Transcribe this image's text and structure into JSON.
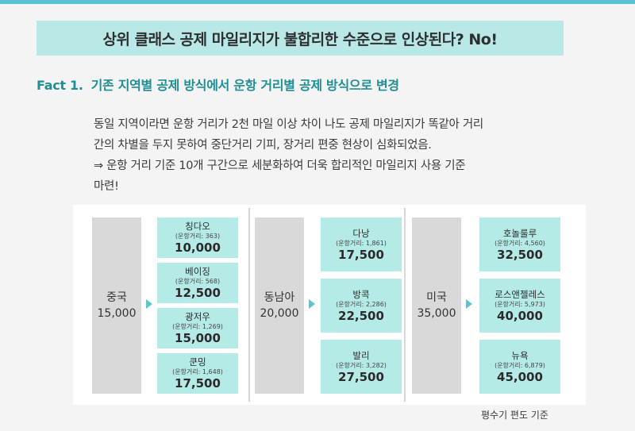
{
  "banner": "상위 클래스 공제 마일리지가 불합리한 수준으로 인상된다? No!",
  "fact": {
    "label": "Fact 1.",
    "title": "기존 지역별 공제 방식에서 운항 거리별 공제 방식으로 변경"
  },
  "body": {
    "line1": "동일 지역이라면 운항 거리가 2천 마일 이상 차이 나도 공제 마일리지가 똑같아 거리",
    "line2": "간의 차별을 두지 못하여 중단거리 기피, 장거리 편중 현상이 심화되었음.",
    "line3": "⇒ 운항 거리 기준 10개 구간으로 세분화하여 더욱 합리적인 마일리지 사용 기준",
    "line4": "마련!"
  },
  "groups": [
    {
      "region": "중국",
      "old_value": "15,000",
      "destinations": [
        {
          "name": "칭다오",
          "distance": "(운항거리: 363)",
          "value": "10,000"
        },
        {
          "name": "베이징",
          "distance": "(운항거리: 568)",
          "value": "12,500"
        },
        {
          "name": "광저우",
          "distance": "(운항거리: 1,269)",
          "value": "15,000"
        },
        {
          "name": "쿤밍",
          "distance": "(운항거리: 1,648)",
          "value": "17,500"
        }
      ]
    },
    {
      "region": "동남아",
      "old_value": "20,000",
      "destinations": [
        {
          "name": "다낭",
          "distance": "(운항거리: 1,861)",
          "value": "17,500"
        },
        {
          "name": "방콕",
          "distance": "(운항거리: 2,286)",
          "value": "22,500"
        },
        {
          "name": "발리",
          "distance": "(운항거리: 3,282)",
          "value": "27,500"
        }
      ]
    },
    {
      "region": "미국",
      "old_value": "35,000",
      "destinations": [
        {
          "name": "호놀룰루",
          "distance": "(운항거리: 4,560)",
          "value": "32,500"
        },
        {
          "name": "로스앤젤레스",
          "distance": "(운항거리: 5,973)",
          "value": "40,000"
        },
        {
          "name": "뉴욕",
          "distance": "(운항거리: 6,879)",
          "value": "45,000"
        }
      ]
    }
  ],
  "footnote": "평수기 편도 기준",
  "colors": {
    "banner_bg": "#b8e9e7",
    "accent": "#1f8f94",
    "card_bg": "#b5ebe6",
    "region_bg": "#d9d9d9",
    "arrow": "#5cc5cf"
  }
}
